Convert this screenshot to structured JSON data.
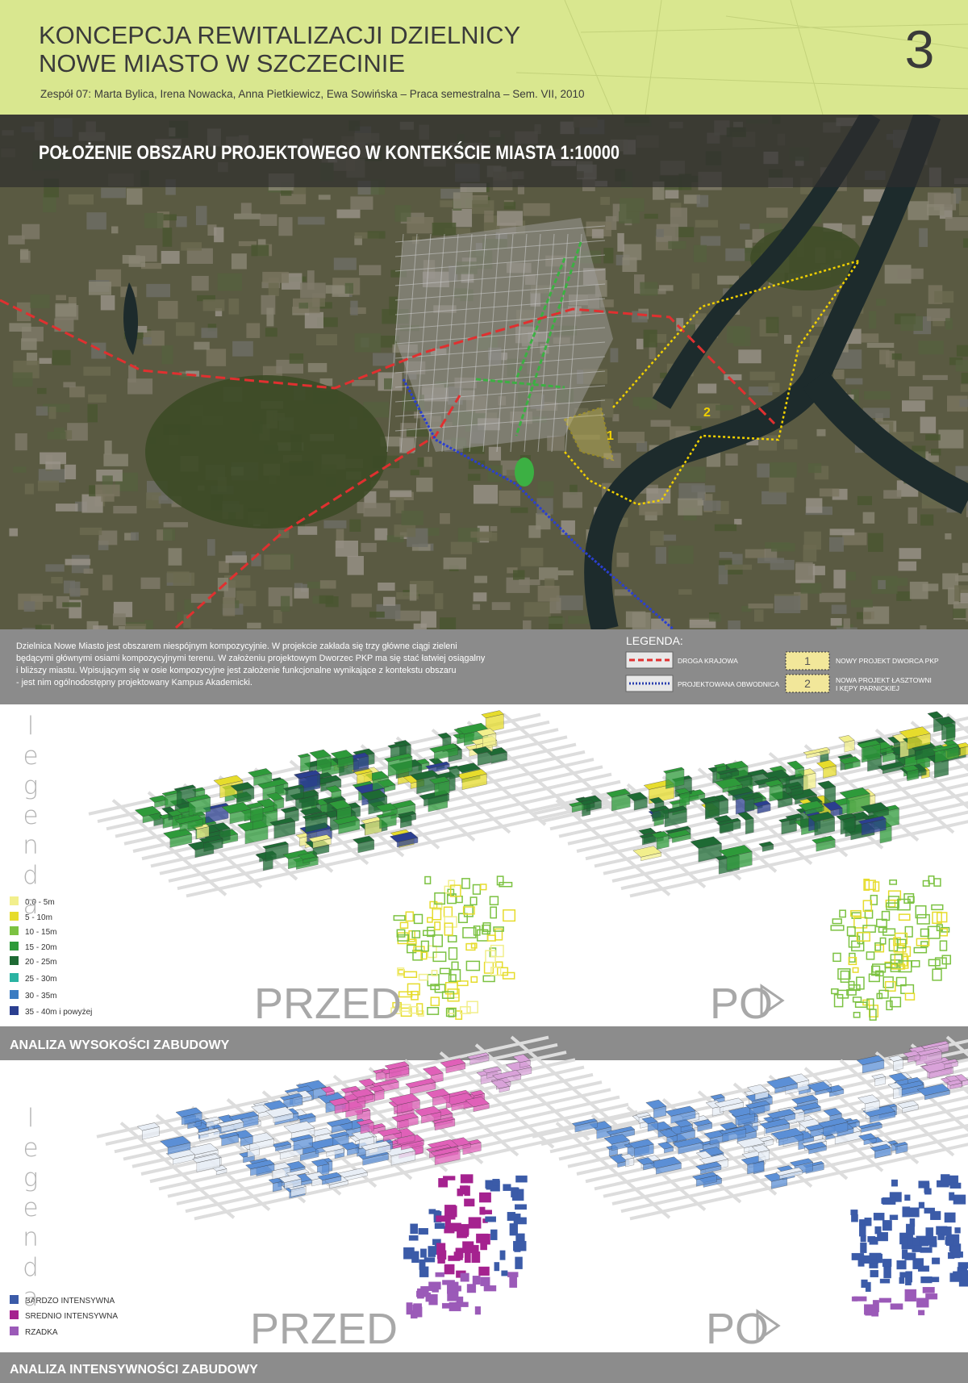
{
  "header": {
    "title_lines": [
      "KONCEPCJA REWITALIZACJI DZIELNICY",
      "NOWE MIASTO W SZCZECINIE"
    ],
    "subtitle": "Zespół 07: Marta Bylica, Irena Nowacka, Anna Pietkiewicz, Ewa Sowińska – Praca semestralna – Sem. VII, 2010",
    "number": "3"
  },
  "context_map": {
    "title": "POŁOŻENIE OBSZARU PROJEKTOWEGO W KONTEKŚCIE MIASTA 1:10000",
    "area_labels": [
      "1",
      "2"
    ],
    "description": [
      "Dzielnica Nowe Miasto jest obszarem niespójnym kompozycyjnie. W projekcie zakłada się trzy główne ciągi zieleni",
      "będącymi głównymi osiami kompozycyjnymi terenu. W założeniu projektowym Dworzec PKP ma się stać łatwiej osiągalny",
      "i bliższy miastu.  Wpisującym się w osie kompozycyjne jest założenie funkcjonalne wynikające z kontekstu obszaru",
      "- jest nim ogólnodostępny projektowany Kampus Akademicki."
    ],
    "legend": {
      "title": "LEGENDA:",
      "items": [
        {
          "label": [
            "DROGA KRAJOWA"
          ]
        },
        {
          "label": [
            "PROJEKTOWANA OBWODNICA"
          ]
        },
        {
          "number": "1",
          "label": [
            "NOWY PROJEKT  DWORCA PKP"
          ]
        },
        {
          "number": "2",
          "label": [
            "NOWA PROJEKT ŁASZTOWNI",
            "I KĘPY PARNICKIEJ"
          ]
        }
      ]
    }
  },
  "height_analysis": {
    "title": "ANALIZA WYSOKOŚCI ZABUDOWY",
    "legend_word": "legenda",
    "before": "PRZED",
    "after": "PO",
    "legend": [
      {
        "label": "0,0 - 5m",
        "color": "#f2ef8c"
      },
      {
        "label": "5 - 10m",
        "color": "#e6dc2c"
      },
      {
        "label": "10 - 15m",
        "color": "#7cc242"
      },
      {
        "label": "15 - 20m",
        "color": "#2e9a3a"
      },
      {
        "label": "20 - 25m",
        "color": "#1e6a34"
      },
      {
        "label": "25 - 30m",
        "color": "#2ab3a2"
      },
      {
        "label": "30 - 35m",
        "color": "#3b7cc2"
      },
      {
        "label": "35 - 40m i powyżej",
        "color": "#2b3f90"
      }
    ]
  },
  "intensity_analysis": {
    "title": "ANALIZA INTENSYWNOŚCI ZABUDOWY",
    "legend_word": "legenda",
    "before": "PRZED",
    "after": "PO",
    "legend": [
      {
        "label": "BARDZO INTENSYWNA",
        "color": "#3b5ba8"
      },
      {
        "label": "SREDNIO INTENSYWNA",
        "color": "#a5228f"
      },
      {
        "label": "RZADKA",
        "color": "#9b5ab8"
      }
    ]
  }
}
